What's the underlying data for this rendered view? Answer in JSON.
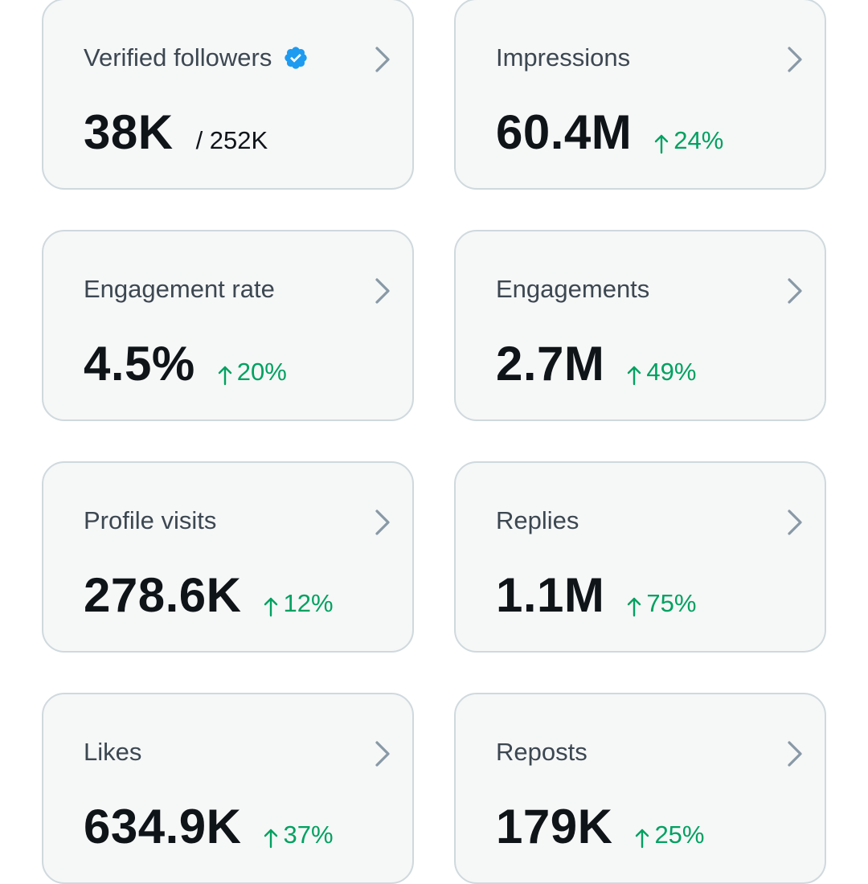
{
  "colors": {
    "card_background": "#f6f7f7",
    "card_border": "#cfd9de",
    "label": "#3c4751",
    "value": "#0f1419",
    "delta_positive": "#00a161",
    "chevron": "#8899a6",
    "verified_badge": "#1d9bf0"
  },
  "cards": [
    {
      "label": "Verified followers",
      "value": "38K",
      "sub_value": "/ 252K",
      "icon": "verified-badge-icon"
    },
    {
      "label": "Impressions",
      "value": "60.4M",
      "delta": "24%"
    },
    {
      "label": "Engagement rate",
      "value": "4.5%",
      "delta": "20%"
    },
    {
      "label": "Engagements",
      "value": "2.7M",
      "delta": "49%"
    },
    {
      "label": "Profile visits",
      "value": "278.6K",
      "delta": "12%"
    },
    {
      "label": "Replies",
      "value": "1.1M",
      "delta": "75%"
    },
    {
      "label": "Likes",
      "value": "634.9K",
      "delta": "37%"
    },
    {
      "label": "Reposts",
      "value": "179K",
      "delta": "25%"
    }
  ]
}
